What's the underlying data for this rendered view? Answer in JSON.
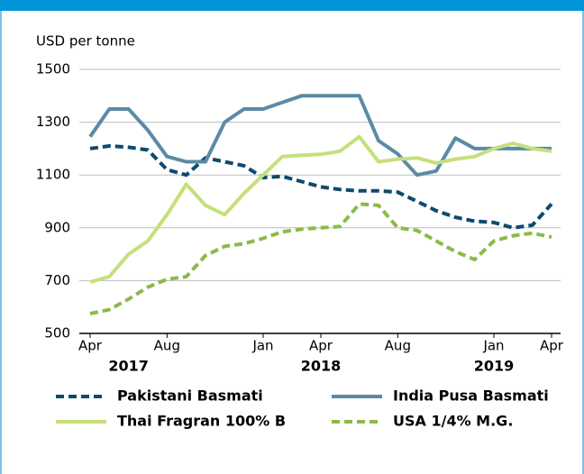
{
  "chart_data": {
    "type": "line",
    "ylabel": "USD per tonne",
    "categories": [
      "Apr",
      null,
      null,
      null,
      "Aug",
      null,
      null,
      null,
      null,
      "Jan",
      null,
      null,
      "Apr",
      null,
      null,
      null,
      "Aug",
      null,
      null,
      null,
      null,
      "Jan",
      null,
      null,
      "Apr"
    ],
    "year_labels": [
      null,
      null,
      "2017",
      null,
      null,
      null,
      null,
      null,
      null,
      null,
      null,
      null,
      "2018",
      null,
      null,
      null,
      null,
      null,
      null,
      null,
      null,
      "2019",
      null,
      null,
      null
    ],
    "ylim": [
      500,
      1500
    ],
    "yticks": [
      500,
      700,
      900,
      1100,
      1300,
      1500
    ],
    "grid": true,
    "legend": "bottom",
    "series": [
      {
        "name": "Pakistani Basmati",
        "color": "#0d4a6e",
        "dash": true,
        "values": [
          1200,
          1210,
          1205,
          1195,
          1120,
          1100,
          1165,
          1150,
          1135,
          1090,
          1095,
          1075,
          1055,
          1045,
          1040,
          1040,
          1035,
          1000,
          965,
          940,
          925,
          920,
          900,
          910,
          990
        ]
      },
      {
        "name": "India Pusa Basmati",
        "color": "#5b8aa6",
        "dash": false,
        "values": [
          1245,
          1350,
          1350,
          1270,
          1170,
          1150,
          1150,
          1300,
          1350,
          1350,
          1375,
          1400,
          1400,
          1400,
          1400,
          1230,
          1180,
          1100,
          1115,
          1240,
          1200,
          1200,
          1200,
          1200,
          1200
        ]
      },
      {
        "name": "Thai Fragran 100% B",
        "color": "#c5e07a",
        "dash": false,
        "values": [
          695,
          715,
          800,
          850,
          950,
          1065,
          985,
          950,
          1030,
          1100,
          1170,
          1175,
          1178,
          1190,
          1245,
          1150,
          1160,
          1165,
          1145,
          1160,
          1170,
          1200,
          1220,
          1200,
          1190
        ]
      },
      {
        "name": "USA 1/4% M.G.",
        "color": "#8cba4a",
        "dash": true,
        "values": [
          575,
          590,
          630,
          675,
          705,
          715,
          795,
          830,
          840,
          860,
          885,
          895,
          900,
          905,
          990,
          985,
          900,
          890,
          850,
          810,
          780,
          850,
          870,
          880,
          865
        ]
      }
    ]
  }
}
